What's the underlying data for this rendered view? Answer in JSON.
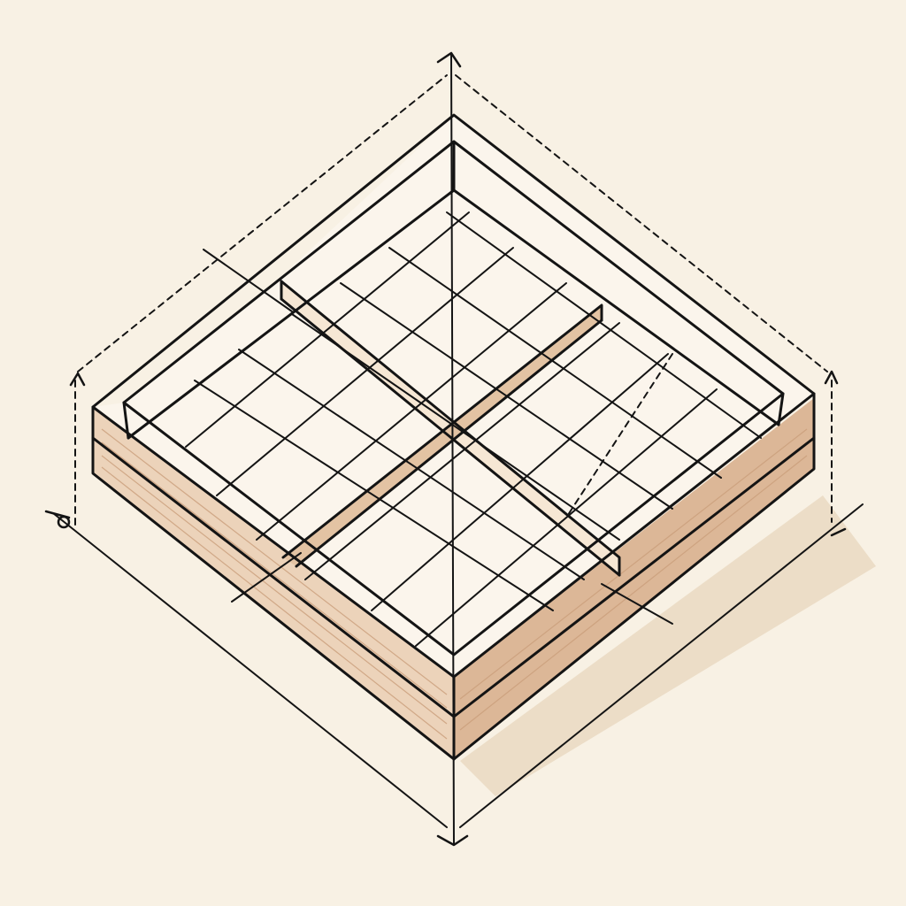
{
  "drawing": {
    "subject": "isometric-wooden-tray-with-center-divider",
    "colors": {
      "background": "#f8f1e4",
      "wood_face_light": "#ecd2b8",
      "wood_face_dark": "#d9b493",
      "wood_top": "#fbf4ea",
      "tray_floor": "#f9ecdc",
      "shadow": "#e7d5bd",
      "ink": "#141414"
    },
    "icons": [
      "dimension-arrow-icon",
      "tick-mark-icon"
    ]
  }
}
